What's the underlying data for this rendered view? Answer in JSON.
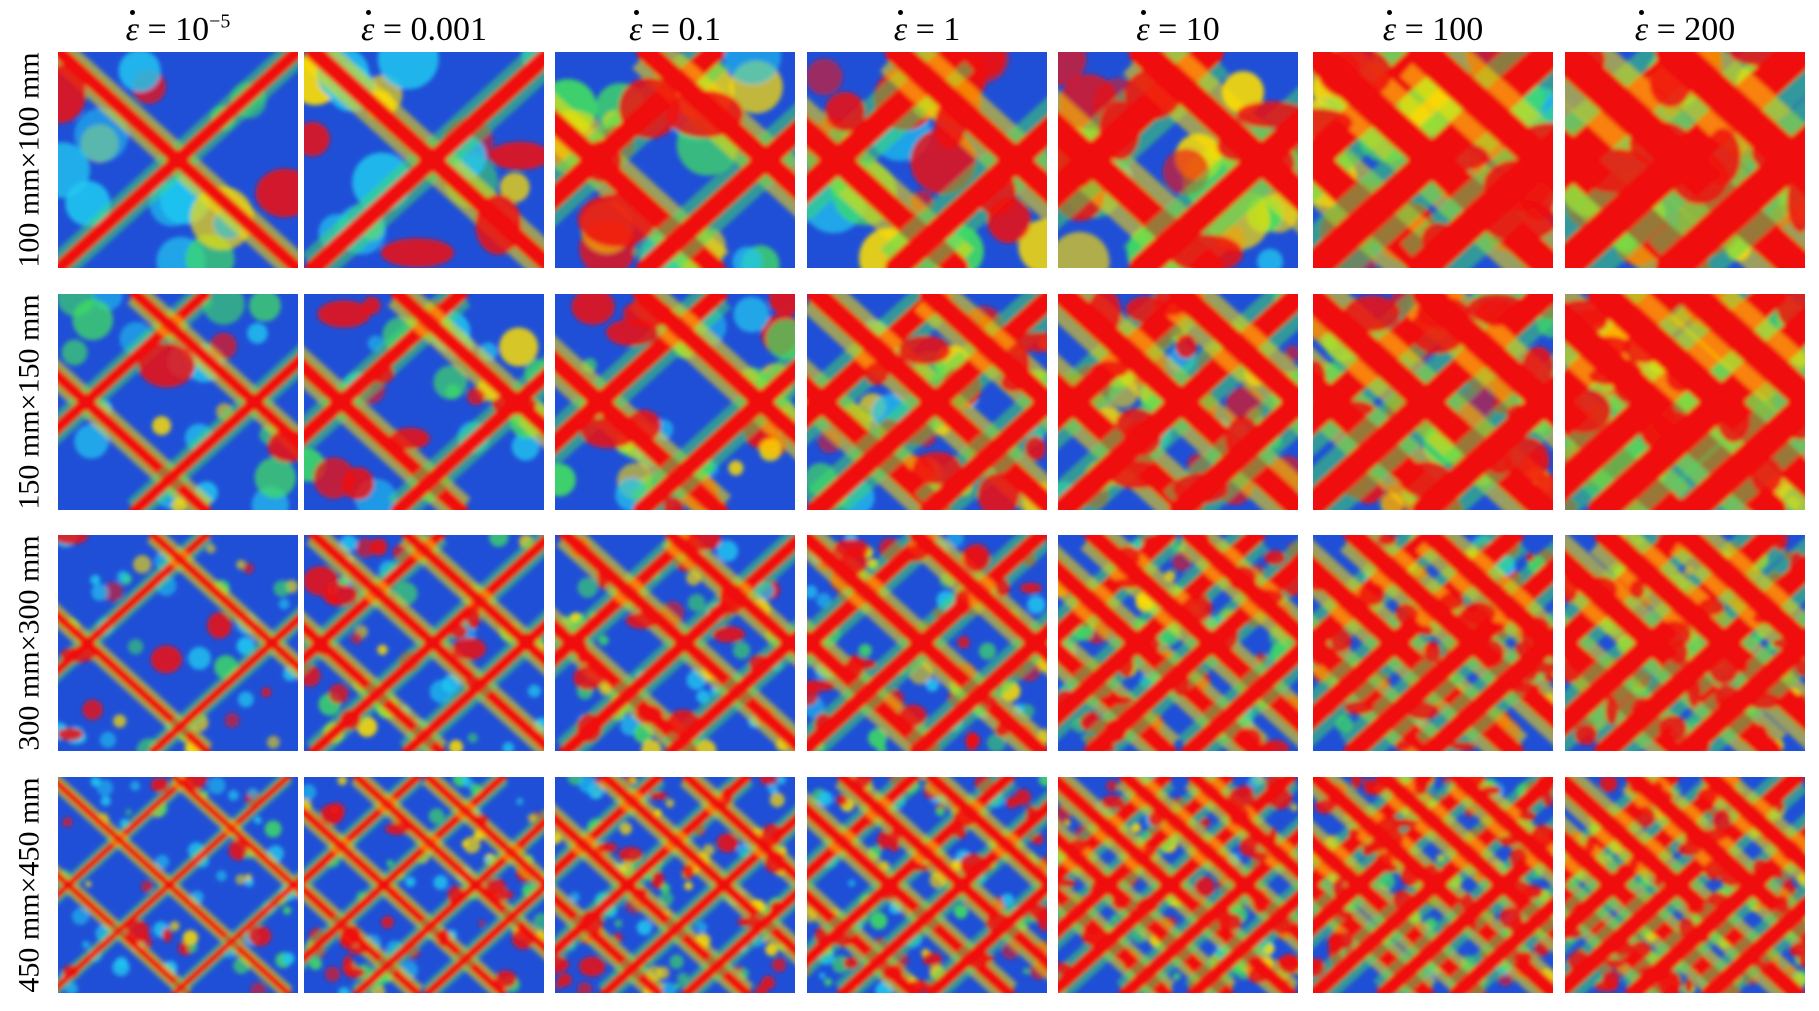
{
  "columns": [
    {
      "symbol": "ε",
      "mantissa": "10",
      "exponent": "−5"
    },
    {
      "symbol": "ε",
      "mantissa": "0.001",
      "exponent": ""
    },
    {
      "symbol": "ε",
      "mantissa": "0.1",
      "exponent": ""
    },
    {
      "symbol": "ε",
      "mantissa": "1",
      "exponent": ""
    },
    {
      "symbol": "ε",
      "mantissa": "10",
      "exponent": ""
    },
    {
      "symbol": "ε",
      "mantissa": "100",
      "exponent": ""
    },
    {
      "symbol": "ε",
      "mantissa": "200",
      "exponent": ""
    }
  ],
  "rows": [
    {
      "label": "100 mm×100 mm"
    },
    {
      "label": "150 mm×150 mm"
    },
    {
      "label": "300 mm×300 mm"
    },
    {
      "label": "450 mm×450 mm"
    }
  ],
  "colors": {
    "background_blue": "#1f4fd6",
    "band_red": "#f01010",
    "halo_yellow": "#ffe000",
    "halo_green": "#40e060",
    "halo_cyan": "#20c8f0"
  }
}
